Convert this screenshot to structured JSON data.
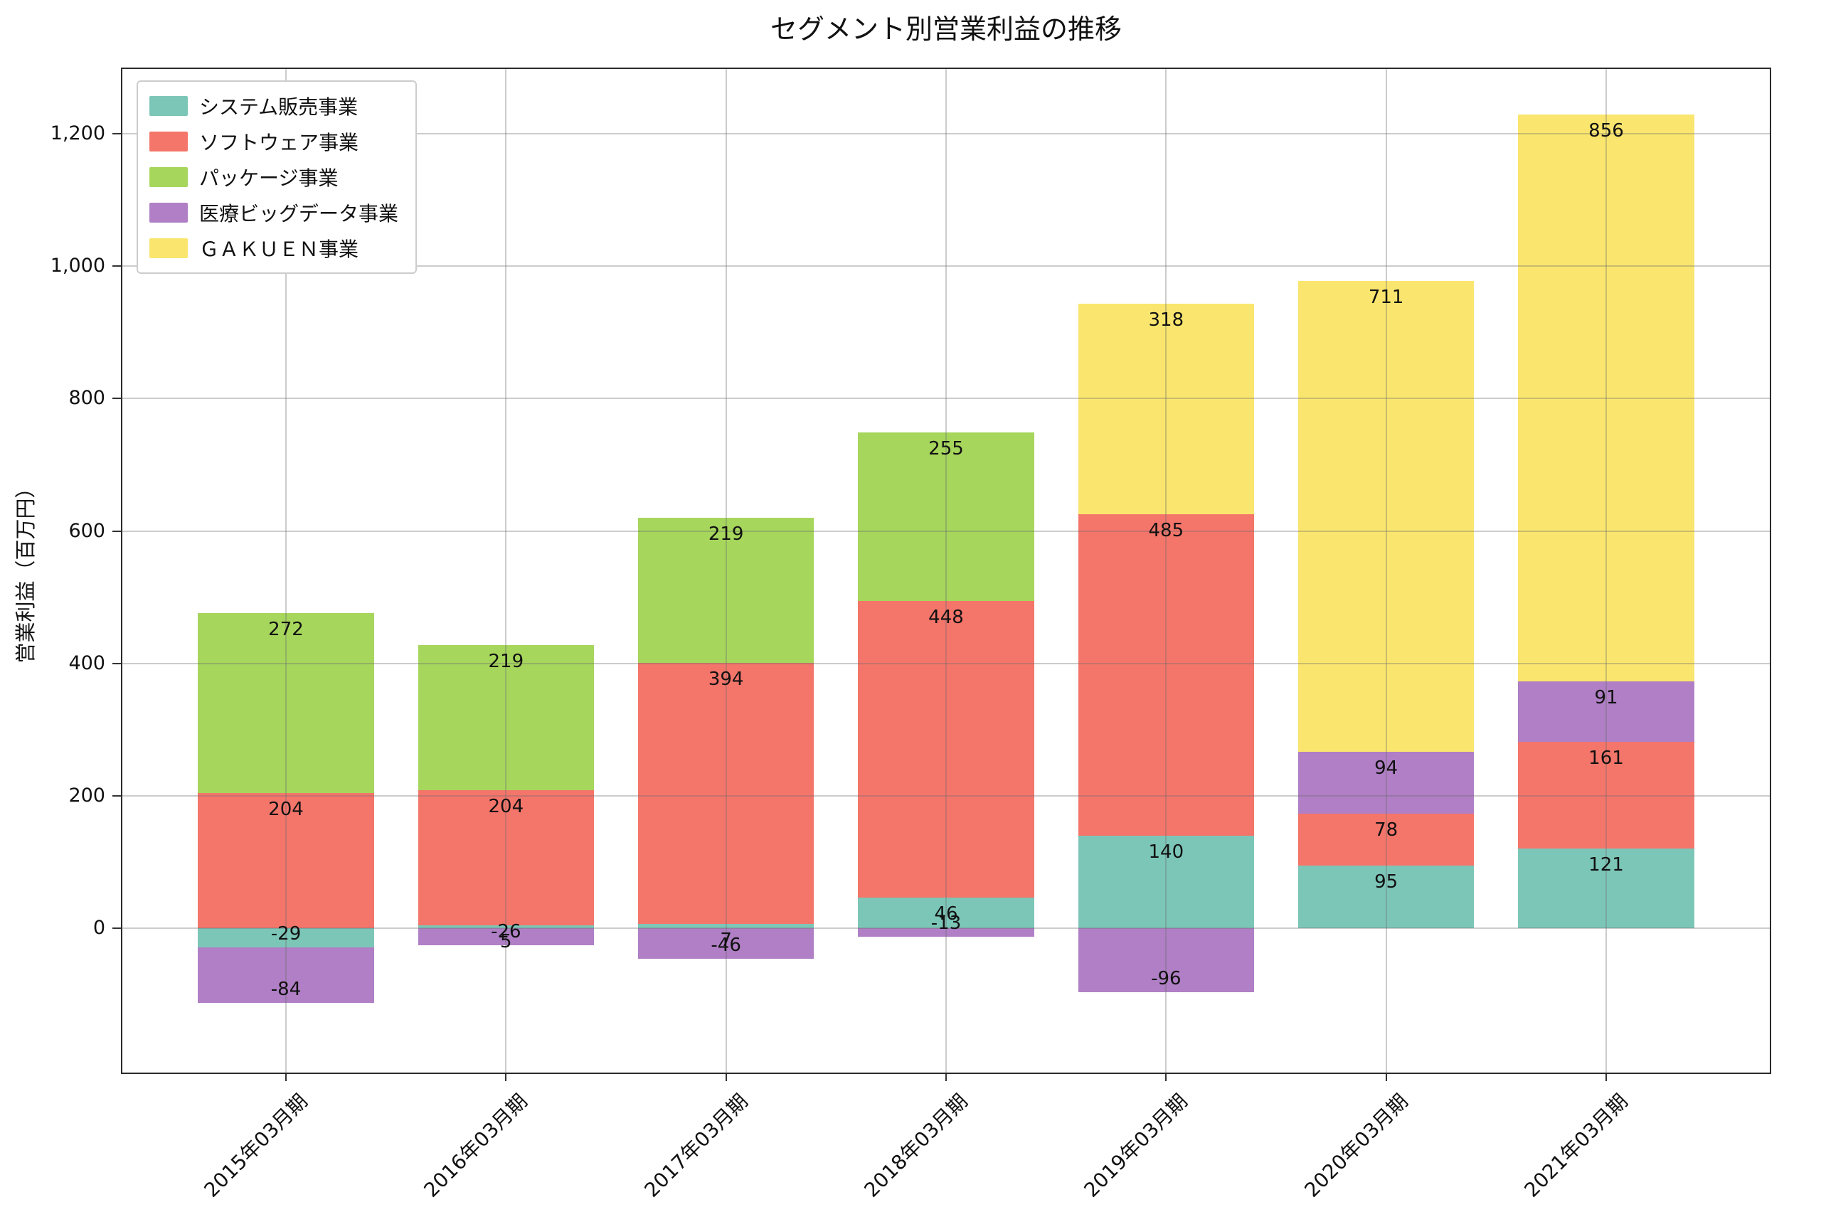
{
  "chart_data": {
    "type": "bar",
    "stacked": true,
    "title": "セグメント別営業利益の推移",
    "ylabel": "営業利益（百万円）",
    "categories": [
      "2015年03月期",
      "2016年03月期",
      "2017年03月期",
      "2018年03月期",
      "2019年03月期",
      "2020年03月期",
      "2021年03月期"
    ],
    "series": [
      {
        "name": "システム販売事業",
        "color": "#7cc6b8",
        "values": [
          -29,
          5,
          7,
          46,
          140,
          95,
          121
        ]
      },
      {
        "name": "ソフトウェア事業",
        "color": "#f4756a",
        "values": [
          204,
          204,
          394,
          448,
          485,
          78,
          161
        ]
      },
      {
        "name": "パッケージ事業",
        "color": "#a6d65c",
        "values": [
          272,
          219,
          219,
          255,
          null,
          null,
          null
        ]
      },
      {
        "name": "医療ビッグデータ事業",
        "color": "#b07fc5",
        "values": [
          -84,
          -26,
          -46,
          -13,
          -96,
          94,
          91
        ]
      },
      {
        "name": "ＧＡＫＵＥＮ事業",
        "color": "#fae66e",
        "values": [
          null,
          null,
          null,
          null,
          318,
          711,
          856
        ]
      }
    ],
    "yticks": [
      0,
      200,
      400,
      600,
      800,
      1000,
      1200
    ],
    "ytick_labels": [
      "0",
      "200",
      "400",
      "600",
      "800",
      "1,000",
      "1,200"
    ],
    "ylim": [
      -220,
      1300
    ],
    "grid": true,
    "legend_position": "upper left",
    "bar_width_ratio": 0.8
  }
}
